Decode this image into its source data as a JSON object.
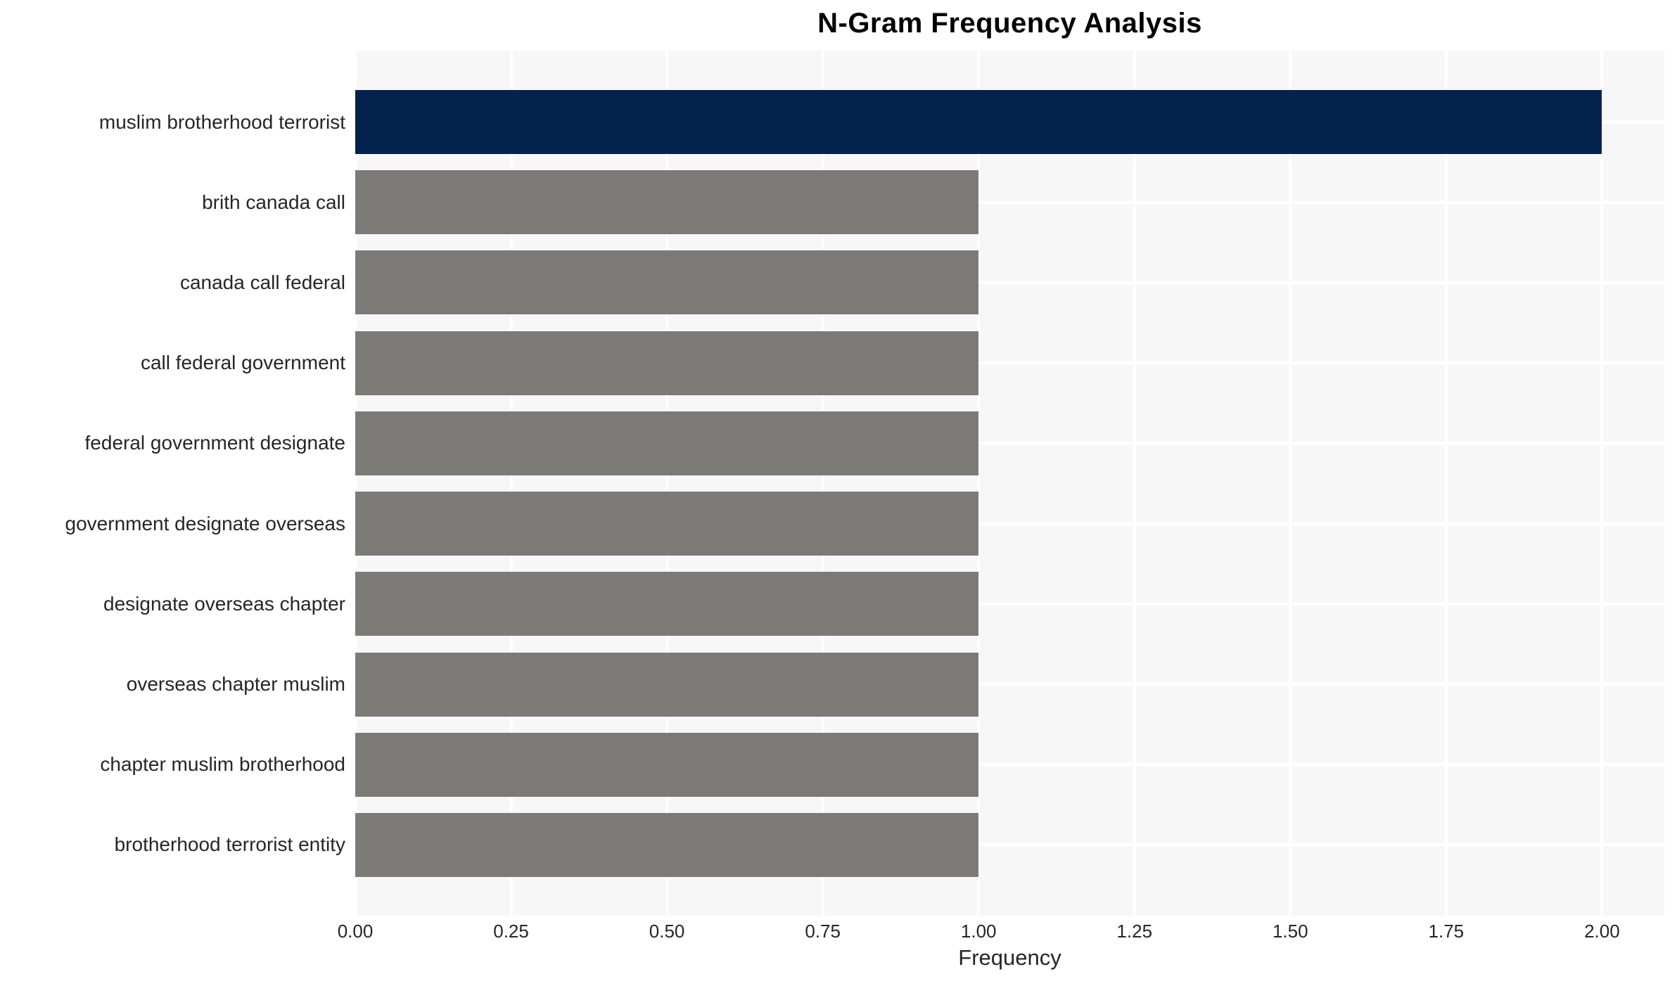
{
  "page": {
    "background": "#ffffff"
  },
  "chart_data": {
    "type": "bar",
    "orientation": "horizontal",
    "title": "N-Gram Frequency Analysis",
    "xlabel": "Frequency",
    "ylabel": "",
    "categories": [
      "muslim brotherhood terrorist",
      "brith canada call",
      "canada call federal",
      "call federal government",
      "federal government designate",
      "government designate overseas",
      "designate overseas chapter",
      "overseas chapter muslim",
      "chapter muslim brotherhood",
      "brotherhood terrorist entity"
    ],
    "values": [
      2.0,
      1.0,
      1.0,
      1.0,
      1.0,
      1.0,
      1.0,
      1.0,
      1.0,
      1.0
    ],
    "bar_colors": [
      "#03224d",
      "#7b7a76",
      "#7b7a76",
      "#7b7a76",
      "#7b7a76",
      "#7b7a76",
      "#7b7a76",
      "#7b7a76",
      "#7b7a76",
      "#7b7a76"
    ],
    "xlim": [
      0,
      2.1
    ],
    "xticks": [
      0,
      0.25,
      0.5,
      0.75,
      1.0,
      1.25,
      1.5,
      1.75,
      2.0
    ],
    "xtick_labels": [
      "0.00",
      "0.25",
      "0.50",
      "0.75",
      "1.00",
      "1.25",
      "1.50",
      "1.75",
      "2.00"
    ],
    "grid": true,
    "legend_position": "none",
    "plot_bg": "#f7f7f7",
    "grid_color": "#ffffff",
    "label_color": "#262626",
    "title_color": "#000000"
  }
}
